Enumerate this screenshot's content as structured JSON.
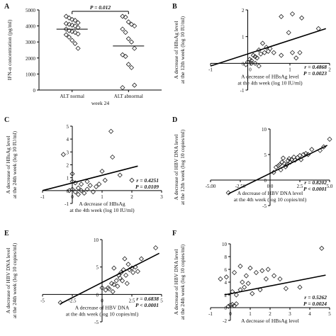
{
  "chart_data": [
    {
      "id": "A",
      "type": "scatter",
      "panel_label": "A",
      "ylabel": "IFN-α concentration (pg/ml)",
      "xlabel": "week 24",
      "categories": [
        "ALT normal",
        "ALT abnormal"
      ],
      "ylim": [
        0,
        5000
      ],
      "yticks": [
        "0",
        "1000",
        "2000",
        "3000",
        "4000",
        "5000"
      ],
      "series": [
        {
          "values": [
            4600,
            4500,
            4400,
            4350,
            4200,
            4150,
            4100,
            4050,
            4000,
            3900,
            3800,
            3700,
            3650,
            3600,
            3500,
            3450,
            3300,
            3100,
            2900,
            2600
          ]
        },
        {
          "values": [
            4600,
            4550,
            4250,
            4100,
            4000,
            3800,
            3600,
            3200,
            3000,
            2600,
            2200,
            2100,
            1600,
            1400,
            300,
            150
          ]
        }
      ],
      "medians": [
        3800,
        2750
      ],
      "annotation": "P = 0.012"
    },
    {
      "id": "B",
      "type": "scatter",
      "panel_label": "B",
      "ylabel_lines": [
        "A decrease of HBsAg level",
        "at the 12th week (log 10 IU/ml)"
      ],
      "xlabel_lines": [
        "A decrease of HBsAg level",
        "at the 4th week (log 10 IU/ml)"
      ],
      "xlim": [
        -1,
        2.2
      ],
      "ylim": [
        -1,
        2
      ],
      "xticks": [
        "-1",
        "0",
        "1",
        "2"
      ],
      "yticks": [
        "-1",
        "0",
        "1",
        "2"
      ],
      "points": [
        [
          0.9,
          1.75
        ],
        [
          1.2,
          1.85
        ],
        [
          1.45,
          1.7
        ],
        [
          1.9,
          1.3
        ],
        [
          1.1,
          1.15
        ],
        [
          0.4,
          0.75
        ],
        [
          0.5,
          0.6
        ],
        [
          0.6,
          0.55
        ],
        [
          0.3,
          0.5
        ],
        [
          0.15,
          0.3
        ],
        [
          0.2,
          0.25
        ],
        [
          0.05,
          0.15
        ],
        [
          0.1,
          0.1
        ],
        [
          0.0,
          0.05
        ],
        [
          0.1,
          0.0
        ],
        [
          0.2,
          0.0
        ],
        [
          -0.05,
          -0.05
        ],
        [
          0.3,
          -0.1
        ],
        [
          0.25,
          0.2
        ],
        [
          0.35,
          0.35
        ],
        [
          0.45,
          0.4
        ],
        [
          0.55,
          0.45
        ],
        [
          1.2,
          0.4
        ],
        [
          1.4,
          0.4
        ],
        [
          1.3,
          0.2
        ],
        [
          0.7,
          0.4
        ],
        [
          0.9,
          0.3
        ]
      ],
      "fit": [
        [
          -1,
          -0.1
        ],
        [
          2.1,
          1.3
        ]
      ],
      "r": "r = 0.4868",
      "p": "P = 0.0023"
    },
    {
      "id": "C",
      "type": "scatter",
      "panel_label": "C",
      "ylabel_lines": [
        "A decrease of HBsAg level",
        "at the 24th week (log 10 IU/ml)"
      ],
      "xlabel_lines": [
        "A decrease of HBsAg",
        "at the 4th week (log 10 IU/ml)"
      ],
      "xlim": [
        -1,
        3
      ],
      "ylim": [
        -1,
        5
      ],
      "xticks": [
        "-1",
        "0",
        "1",
        "2",
        "3"
      ],
      "yticks": [
        "-1",
        "0",
        "1",
        "2",
        "3",
        "4",
        "5"
      ],
      "points": [
        [
          1.3,
          4.6
        ],
        [
          1.35,
          2.6
        ],
        [
          1.0,
          1.5
        ],
        [
          1.6,
          1.2
        ],
        [
          -0.3,
          2.8
        ],
        [
          0.0,
          1.3
        ],
        [
          0.1,
          0.6
        ],
        [
          0.3,
          0.5
        ],
        [
          0.5,
          0.7
        ],
        [
          0.6,
          0.4
        ],
        [
          0.2,
          0.2
        ],
        [
          0.0,
          0.1
        ],
        [
          0.1,
          -0.1
        ],
        [
          0.3,
          0.0
        ],
        [
          -0.1,
          0.0
        ],
        [
          0.2,
          -0.3
        ],
        [
          0.4,
          -0.2
        ],
        [
          0.8,
          0.3
        ],
        [
          0.9,
          0.5
        ],
        [
          1.1,
          0.8
        ],
        [
          0.7,
          -0.1
        ],
        [
          0.5,
          0.1
        ],
        [
          0.0,
          0.7
        ],
        [
          2.0,
          0.8
        ]
      ],
      "fit": [
        [
          -1,
          0.0
        ],
        [
          2.2,
          1.9
        ]
      ],
      "r": "r = 0.4251",
      "p": "P = 0.0109"
    },
    {
      "id": "D",
      "type": "scatter",
      "panel_label": "D",
      "ylabel_lines": [
        "A decrease of HBV DNA level",
        "at the 12th week (log 10 copies/ml)"
      ],
      "xlabel_lines": [
        "A decrease of HBV DNA level",
        "at the 4th week (log 10 copies/ml)"
      ],
      "xlim": [
        -5,
        5
      ],
      "ylim": [
        -5,
        10
      ],
      "xticks": [
        "-5.00",
        "-2.50",
        "0.0",
        "2.5",
        "5.0"
      ],
      "yticks": [
        "-5",
        "0",
        "5",
        "10"
      ],
      "points": [
        [
          -3.5,
          -2.5
        ],
        [
          0.5,
          2.5
        ],
        [
          0.8,
          3.0
        ],
        [
          1.0,
          3.5
        ],
        [
          1.2,
          3.2
        ],
        [
          1.5,
          3.8
        ],
        [
          1.6,
          4.2
        ],
        [
          1.8,
          4.0
        ],
        [
          2.0,
          4.5
        ],
        [
          2.3,
          4.4
        ],
        [
          2.5,
          4.8
        ],
        [
          2.8,
          5.0
        ],
        [
          3.0,
          5.2
        ],
        [
          3.2,
          5.0
        ],
        [
          1.1,
          4.3
        ],
        [
          0.7,
          2.8
        ],
        [
          0.9,
          2.0
        ],
        [
          1.3,
          2.6
        ],
        [
          1.4,
          3.0
        ],
        [
          1.7,
          3.5
        ],
        [
          2.1,
          3.9
        ],
        [
          3.5,
          6.0
        ],
        [
          4.5,
          6.5
        ],
        [
          4.2,
          5.8
        ],
        [
          0.3,
          1.5
        ],
        [
          5.0,
          8.0
        ],
        [
          2.6,
          4.0
        ]
      ],
      "fit": [
        [
          -3.5,
          -2.7
        ],
        [
          4.8,
          6.8
        ]
      ],
      "r": "r = 0.8202",
      "p": "P < 0.0001"
    },
    {
      "id": "E",
      "type": "scatter",
      "panel_label": "E",
      "ylabel_lines": [
        "A decrease of HBV DNA level",
        "at the 24th week (log 10 copies/ml)"
      ],
      "xlabel_lines": [
        "A decrease of HBV DNA",
        "at the 4th week (log 10 copies/ml)"
      ],
      "xlim": [
        -5,
        5
      ],
      "ylim": [
        -5,
        10
      ],
      "xticks": [
        "-5",
        "-2.5",
        "0",
        "2.5",
        "5"
      ],
      "yticks": [
        "-5",
        "0",
        "5",
        "10"
      ],
      "points": [
        [
          -3.5,
          -1.5
        ],
        [
          0.5,
          1.2
        ],
        [
          0.8,
          2.0
        ],
        [
          1.0,
          1.8
        ],
        [
          1.2,
          2.5
        ],
        [
          1.5,
          3.0
        ],
        [
          1.6,
          4.0
        ],
        [
          1.8,
          4.5
        ],
        [
          2.0,
          3.5
        ],
        [
          2.3,
          4.5
        ],
        [
          2.5,
          4.8
        ],
        [
          2.8,
          5.0
        ],
        [
          3.0,
          4.2
        ],
        [
          2.2,
          5.5
        ],
        [
          1.0,
          4.8
        ],
        [
          0.6,
          1.0
        ],
        [
          0.9,
          0.5
        ],
        [
          1.3,
          1.5
        ],
        [
          1.4,
          3.5
        ],
        [
          1.7,
          2.5
        ],
        [
          2.1,
          2.0
        ],
        [
          3.3,
          6.5
        ],
        [
          4.5,
          8.5
        ],
        [
          0.3,
          0.8
        ],
        [
          0.0,
          1.2
        ],
        [
          2.6,
          4.0
        ],
        [
          1.9,
          6.5
        ]
      ],
      "fit": [
        [
          -3.5,
          -1.7
        ],
        [
          4.8,
          7.5
        ]
      ],
      "r": "r = 0.6838",
      "p": "P < 0.0001"
    },
    {
      "id": "F",
      "type": "scatter",
      "panel_label": "F",
      "ylabel_lines": [
        "A decrease of HBV DNA level",
        "at the 24th week (log 10 copies/ml)"
      ],
      "xlabel_lines": [
        "A decrease of HBsAg level"
      ],
      "xlim": [
        -1,
        5
      ],
      "ylim": [
        -2,
        10
      ],
      "xticks": [
        "-1",
        "0",
        "1",
        "2",
        "3",
        "4",
        "5"
      ],
      "yticks": [
        "-2",
        "0",
        "2",
        "4",
        "6",
        "8",
        "10"
      ],
      "points": [
        [
          -0.5,
          4.5
        ],
        [
          -0.2,
          4.8
        ],
        [
          0.2,
          5.5
        ],
        [
          0.5,
          6.5
        ],
        [
          0.8,
          5.0
        ],
        [
          1.0,
          6.2
        ],
        [
          1.3,
          5.5
        ],
        [
          1.6,
          5.8
        ],
        [
          1.9,
          6.0
        ],
        [
          2.2,
          5.0
        ],
        [
          2.5,
          4.5
        ],
        [
          0.1,
          2.5
        ],
        [
          0.3,
          2.0
        ],
        [
          0.5,
          2.8
        ],
        [
          0.7,
          3.2
        ],
        [
          0.9,
          3.8
        ],
        [
          0.0,
          0.4
        ],
        [
          0.1,
          0.5
        ],
        [
          0.2,
          0.3
        ],
        [
          -0.1,
          0.2
        ],
        [
          0.3,
          0.6
        ],
        [
          1.1,
          2.2
        ],
        [
          1.5,
          2.8
        ],
        [
          2.8,
          3.0
        ],
        [
          3.5,
          3.2
        ],
        [
          4.6,
          9.3
        ],
        [
          0.6,
          4.0
        ],
        [
          1.8,
          4.5
        ]
      ],
      "fit": [
        [
          -0.3,
          2.0
        ],
        [
          4.8,
          5.1
        ]
      ],
      "r": "r = 0.5262",
      "p": "P = 0.0024"
    }
  ]
}
